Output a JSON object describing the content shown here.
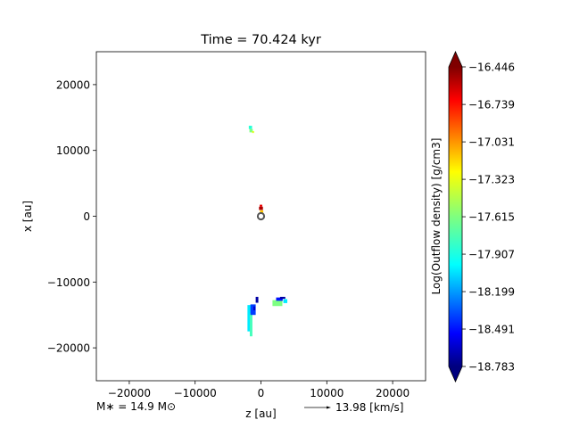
{
  "chart_data": {
    "type": "heatmap",
    "title": "Time = 70.424 kyr",
    "xlabel": "z [au]",
    "ylabel": "x [au]",
    "xlim": [
      -25000,
      25000
    ],
    "ylim": [
      -25000,
      25000
    ],
    "x_ticks": [
      -20000,
      -10000,
      0,
      10000,
      20000
    ],
    "x_tick_labels": [
      "−20000",
      "−10000",
      "0",
      "10000",
      "20000"
    ],
    "y_ticks": [
      20000,
      10000,
      0,
      -10000,
      -20000
    ],
    "y_tick_labels": [
      "20000",
      "10000",
      "0",
      "−10000",
      "−20000"
    ],
    "colorbar": {
      "label": "Log(Outflow density) [g/cm3]",
      "min": -18.783,
      "max": -16.446,
      "ticks": [
        -16.446,
        -16.739,
        -17.031,
        -17.323,
        -17.615,
        -17.907,
        -18.199,
        -18.491,
        -18.783
      ],
      "tick_labels": [
        "−16.446",
        "−16.739",
        "−17.031",
        "−17.323",
        "−17.615",
        "−17.907",
        "−18.199",
        "−18.491",
        "−18.783"
      ],
      "colormap": "jet",
      "extend": "both"
    },
    "outflow_patches": [
      {
        "z": -1600,
        "x": 13500,
        "w": 500,
        "h": 500,
        "value": -17.82
      },
      {
        "z": -1500,
        "x": 13000,
        "w": 500,
        "h": 500,
        "value": -17.62
      },
      {
        "z": -1200,
        "x": 12800,
        "w": 300,
        "h": 300,
        "value": -17.4
      },
      {
        "z": 0,
        "x": 1600,
        "w": 400,
        "h": 300,
        "value": -16.7
      },
      {
        "z": 0,
        "x": 1200,
        "w": 600,
        "h": 500,
        "value": -16.55
      },
      {
        "z": 100,
        "x": 700,
        "w": 500,
        "h": 400,
        "value": -17.2
      },
      {
        "z": -1700,
        "x": -15500,
        "w": 700,
        "h": 4000,
        "value": -17.95
      },
      {
        "z": -1500,
        "x": -16500,
        "w": 400,
        "h": 3500,
        "value": -17.75
      },
      {
        "z": -1200,
        "x": -14200,
        "w": 800,
        "h": 1600,
        "value": -18.35
      },
      {
        "z": -600,
        "x": -12700,
        "w": 400,
        "h": 900,
        "value": -18.7
      },
      {
        "z": -1000,
        "x": -14000,
        "w": 300,
        "h": 600,
        "value": -18.6
      },
      {
        "z": 2500,
        "x": -13200,
        "w": 1500,
        "h": 900,
        "value": -17.62
      },
      {
        "z": 2800,
        "x": -12600,
        "w": 1000,
        "h": 500,
        "value": -18.45
      },
      {
        "z": 3300,
        "x": -12400,
        "w": 800,
        "h": 300,
        "value": -18.7
      },
      {
        "z": 3700,
        "x": -12900,
        "w": 600,
        "h": 600,
        "value": -17.95
      }
    ],
    "star_position": {
      "z": 0,
      "x": 0
    },
    "annotations": {
      "stellar_mass": "M∗ = 14.9 M⊙",
      "velocity_scale": "13.98 [km/s]"
    }
  }
}
